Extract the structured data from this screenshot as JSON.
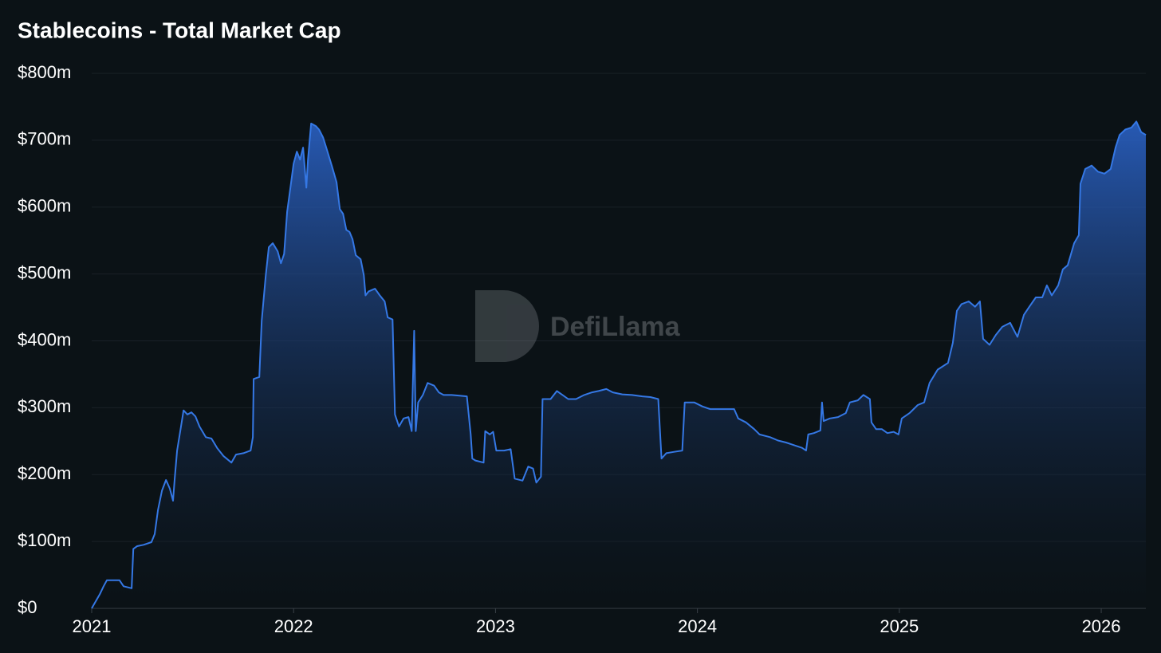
{
  "chart_data": {
    "type": "area",
    "title": "Stablecoins - Total Market Cap",
    "watermark": "DefiLlama",
    "grid": true,
    "xlim": [
      2021,
      2026.221
    ],
    "xticks": [
      2021,
      2022,
      2023,
      2024,
      2025,
      2026
    ],
    "ylim": [
      0,
      800
    ],
    "yticks": [
      {
        "value": 0,
        "label": "$0"
      },
      {
        "value": 100,
        "label": "$100m"
      },
      {
        "value": 200,
        "label": "$200m"
      },
      {
        "value": 300,
        "label": "$300m"
      },
      {
        "value": 400,
        "label": "$400m"
      },
      {
        "value": 500,
        "label": "$500m"
      },
      {
        "value": 600,
        "label": "$600m"
      },
      {
        "value": 700,
        "label": "$700m"
      },
      {
        "value": 800,
        "label": "$800m"
      }
    ],
    "x": [
      2021.0,
      2021.04,
      2021.059,
      2021.075,
      2021.138,
      2021.158,
      2021.198,
      2021.206,
      2021.225,
      2021.257,
      2021.296,
      2021.312,
      2021.328,
      2021.348,
      2021.368,
      2021.387,
      2021.403,
      2021.411,
      2021.423,
      2021.439,
      2021.455,
      2021.474,
      2021.494,
      2021.514,
      2021.534,
      2021.565,
      2021.593,
      2021.621,
      2021.652,
      2021.692,
      2021.715,
      2021.751,
      2021.787,
      2021.798,
      2021.802,
      2021.83,
      2021.842,
      2021.862,
      2021.877,
      2021.897,
      2021.921,
      2021.937,
      2021.953,
      2021.968,
      2021.984,
      2022.0,
      2022.016,
      2022.032,
      2022.047,
      2022.063,
      2022.071,
      2022.087,
      2022.111,
      2022.126,
      2022.146,
      2022.166,
      2022.19,
      2022.213,
      2022.229,
      2022.245,
      2022.261,
      2022.277,
      2022.292,
      2022.308,
      2022.332,
      2022.348,
      2022.356,
      2022.372,
      2022.403,
      2022.427,
      2022.451,
      2022.466,
      2022.49,
      2022.502,
      2022.522,
      2022.545,
      2022.569,
      2022.585,
      2022.597,
      2022.605,
      2022.617,
      2022.64,
      2022.664,
      2022.696,
      2022.719,
      2022.743,
      2022.783,
      2022.822,
      2022.858,
      2022.877,
      2022.885,
      2022.901,
      2022.941,
      2022.949,
      2022.972,
      2022.988,
      2023.004,
      2023.043,
      2023.075,
      2023.095,
      2023.134,
      2023.162,
      2023.186,
      2023.202,
      2023.225,
      2023.233,
      2023.273,
      2023.304,
      2023.332,
      2023.36,
      2023.399,
      2023.439,
      2023.478,
      2023.51,
      2023.549,
      2023.581,
      2023.628,
      2023.676,
      2023.727,
      2023.767,
      2023.806,
      2023.822,
      2023.846,
      2023.885,
      2023.925,
      2023.937,
      2023.984,
      2024.024,
      2024.063,
      2024.103,
      2024.142,
      2024.182,
      2024.202,
      2024.241,
      2024.281,
      2024.308,
      2024.36,
      2024.399,
      2024.439,
      2024.478,
      2024.518,
      2024.538,
      2024.549,
      2024.577,
      2024.609,
      2024.617,
      2024.625,
      2024.656,
      2024.696,
      2024.735,
      2024.755,
      2024.794,
      2024.822,
      2024.854,
      2024.862,
      2024.885,
      2024.913,
      2024.941,
      2024.972,
      2024.996,
      2025.012,
      2025.051,
      2025.091,
      2025.123,
      2025.15,
      2025.19,
      2025.241,
      2025.265,
      2025.285,
      2025.308,
      2025.344,
      2025.375,
      2025.399,
      2025.415,
      2025.447,
      2025.478,
      2025.51,
      2025.549,
      2025.585,
      2025.617,
      2025.644,
      2025.676,
      2025.708,
      2025.731,
      2025.755,
      2025.787,
      2025.81,
      2025.834,
      2025.866,
      2025.889,
      2025.897,
      2025.921,
      2025.953,
      2025.984,
      2026.016,
      2026.047,
      2026.071,
      2026.091,
      2026.119,
      2026.15,
      2026.174,
      2026.198,
      2026.221
    ],
    "series": [
      {
        "color": "#3578e5",
        "values": [
          0,
          21,
          33,
          42,
          42,
          33,
          30,
          89,
          93,
          95,
          99,
          111,
          147,
          176,
          192,
          179,
          161,
          194,
          236,
          266,
          296,
          290,
          293,
          287,
          272,
          256,
          254,
          240,
          228,
          218,
          230,
          232,
          236,
          256,
          343,
          346,
          430,
          498,
          540,
          546,
          534,
          516,
          530,
          593,
          629,
          665,
          683,
          671,
          689,
          629,
          671,
          725,
          721,
          716,
          704,
          685,
          661,
          637,
          597,
          590,
          566,
          563,
          552,
          528,
          522,
          498,
          468,
          474,
          478,
          468,
          459,
          435,
          432,
          290,
          272,
          284,
          286,
          265,
          415,
          265,
          308,
          319,
          337,
          333,
          323,
          319,
          319,
          318,
          317,
          260,
          224,
          221,
          218,
          265,
          260,
          264,
          236,
          236,
          238,
          194,
          191,
          212,
          209,
          188,
          197,
          313,
          313,
          325,
          319,
          313,
          313,
          319,
          323,
          325,
          328,
          323,
          320,
          319,
          317,
          316,
          313,
          224,
          232,
          234,
          236,
          308,
          308,
          302,
          298,
          298,
          298,
          298,
          284,
          278,
          268,
          260,
          256,
          251,
          248,
          244,
          240,
          236,
          260,
          262,
          266,
          308,
          280,
          284,
          286,
          292,
          308,
          311,
          319,
          313,
          278,
          268,
          268,
          262,
          264,
          260,
          284,
          292,
          304,
          308,
          337,
          357,
          367,
          397,
          445,
          455,
          459,
          451,
          459,
          403,
          394,
          409,
          421,
          427,
          406,
          439,
          451,
          465,
          465,
          483,
          468,
          483,
          507,
          513,
          546,
          558,
          635,
          657,
          662,
          653,
          650,
          657,
          689,
          708,
          716,
          719,
          728,
          712,
          708
        ]
      }
    ]
  }
}
